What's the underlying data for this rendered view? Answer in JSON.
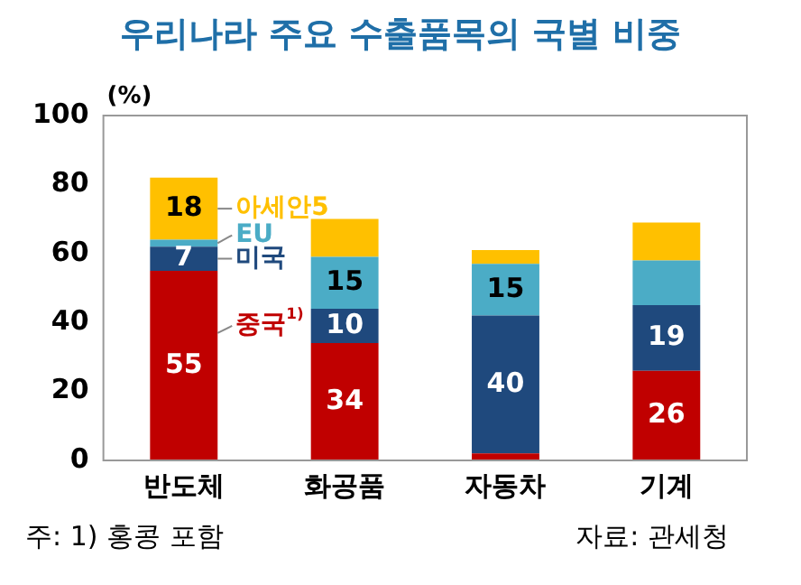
{
  "chart_data": {
    "type": "bar",
    "title": "우리나라 주요 수출품목의 국별 비중",
    "ylabel": "(%)",
    "categories": [
      "반도체",
      "화공품",
      "자동차",
      "기계"
    ],
    "stacked": true,
    "series": [
      {
        "name": "중국$^{1)}$",
        "color": "#c00000",
        "values": [
          55,
          34,
          2,
          26
        ],
        "value_labels": [
          "55",
          "34",
          null,
          "26"
        ]
      },
      {
        "name": "미국",
        "color": "#1f497d",
        "values": [
          7,
          10,
          40,
          19
        ],
        "value_labels": [
          "7",
          "10",
          "40",
          "19"
        ]
      },
      {
        "name": "EU",
        "color": "#4bacc6",
        "values": [
          2,
          15,
          15,
          13
        ],
        "value_labels": [
          null,
          "15",
          "15",
          null
        ]
      },
      {
        "name": "아세안5",
        "color": "#ffc000",
        "values": [
          18,
          11,
          4,
          11
        ],
        "value_labels": [
          "18",
          null,
          null,
          null
        ]
      }
    ],
    "ylim": [
      0,
      100
    ],
    "yticks": [
      0,
      20,
      40,
      60,
      80,
      100
    ],
    "grid": false,
    "legend": false,
    "annotations": [
      "주: 1) 홍콩 포함",
      "자료: 관세청"
    ]
  }
}
